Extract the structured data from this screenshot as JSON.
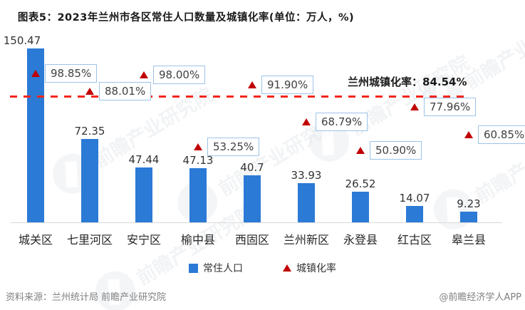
{
  "title": "图表5：2023年兰州市各区常住人口数量及城镇化率(单位：万人，%)",
  "watermark_text": "前瞻产业研究院",
  "legend": {
    "population": "常住人口",
    "urbanization": "城镇化率"
  },
  "footer": {
    "source": "资料来源：兰州统计局 前瞻产业研究院",
    "credit": "@前瞻经济学人APP"
  },
  "colors": {
    "bar": "#2b7ad6",
    "triangle": "#c00000",
    "dashed_line": "#f4261d",
    "box_border": "#9ec3e8",
    "axis": "#d9d9d9"
  },
  "chart_data": {
    "type": "bar",
    "title": "图表5：2023年兰州市各区常住人口数量及城镇化率(单位：万人，%)",
    "categories": [
      "城关区",
      "七里河区",
      "安宁区",
      "榆中县",
      "西固区",
      "兰州新区",
      "永登县",
      "红古区",
      "皋兰县"
    ],
    "series": [
      {
        "name": "常住人口",
        "type": "bar",
        "unit": "万人",
        "values": [
          150.47,
          72.35,
          47.44,
          47.13,
          40.7,
          33.93,
          26.52,
          14.07,
          9.23
        ],
        "labels": [
          "150.47",
          "72.35",
          "47.44",
          "47.13",
          "40.7",
          "33.93",
          "26.52",
          "14.07",
          "9.23"
        ]
      },
      {
        "name": "城镇化率",
        "type": "scatter",
        "marker": "triangle",
        "unit": "%",
        "values": [
          98.85,
          88.01,
          98.0,
          53.25,
          91.9,
          68.79,
          50.9,
          77.96,
          60.85
        ],
        "labels": [
          "98.85%",
          "88.01%",
          "98.00%",
          "53.25%",
          "91.90%",
          "68.79%",
          "50.90%",
          "77.96%",
          "60.85%"
        ]
      }
    ],
    "reference_line": {
      "label": "兰州城镇化率：84.54%",
      "value": 84.54
    },
    "axes": {
      "primary_y": {
        "visible": false,
        "min": 0
      },
      "secondary_y": {
        "visible": false
      },
      "grid": false
    },
    "legend_position": "bottom"
  }
}
